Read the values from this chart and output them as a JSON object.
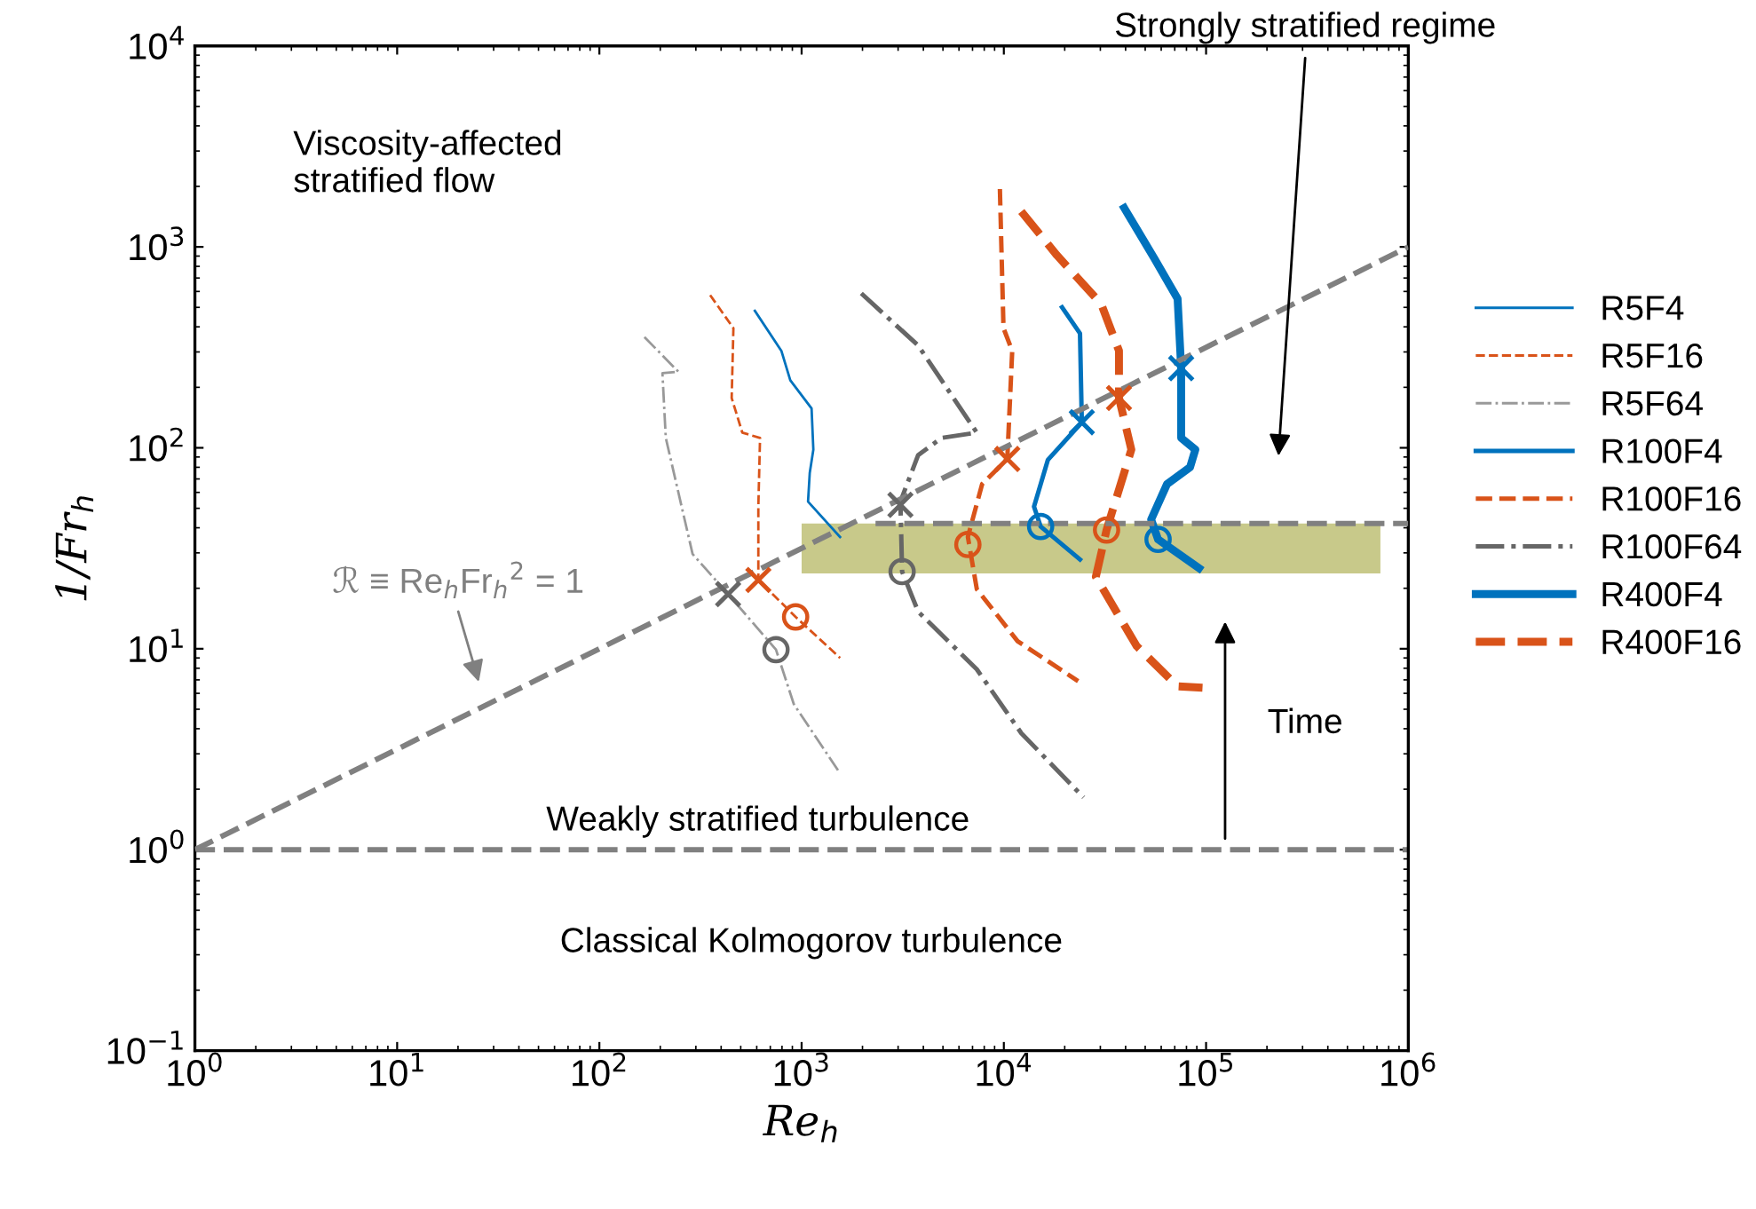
{
  "chart_data": {
    "type": "line",
    "xlabel": "Re$_{h}$",
    "ylabel": "1/Fr$_{h}$",
    "log": "xy",
    "xlim": [
      1,
      1000000
    ],
    "ylim": [
      0.1,
      10000
    ],
    "xticks": [
      {
        "value": 1,
        "label": "10$^{0}$"
      },
      {
        "value": 10,
        "label": "10$^{1}$"
      },
      {
        "value": 100,
        "label": "10$^{2}$"
      },
      {
        "value": 1000,
        "label": "10$^{3}$"
      },
      {
        "value": 10000,
        "label": "10$^{4}$"
      },
      {
        "value": 100000,
        "label": "10$^{5}$"
      },
      {
        "value": 1000000,
        "label": "10$^{6}$"
      }
    ],
    "yticks": [
      {
        "value": 0.1,
        "label": "10$^{−1}$"
      },
      {
        "value": 1,
        "label": "10$^{0}$"
      },
      {
        "value": 10,
        "label": "10$^{1}$"
      },
      {
        "value": 100,
        "label": "10$^{2}$"
      },
      {
        "value": 1000,
        "label": "10$^{3}$"
      },
      {
        "value": 10000,
        "label": "10$^{4}$"
      }
    ],
    "grid": false,
    "legend": "right",
    "marker": "none",
    "series": [
      {
        "name": "R5F4",
        "color": "#0072bd",
        "line_style": "solid",
        "x": [
          587,
          794,
          879,
          1120,
          1143,
          1097,
          1076,
          1549
        ],
        "values": [
          481,
          304,
          217,
          157,
          98,
          75,
          54,
          36
        ]
      },
      {
        "name": "R5F16",
        "color": "#d95319",
        "line_style": "dashed",
        "x": [
          353,
          460,
          451,
          509,
          623,
          611,
          611,
          934,
          1549
        ],
        "values": [
          575,
          394,
          177,
          119,
          112,
          51,
          22,
          14.4,
          9.0
        ]
      },
      {
        "name": "R5F64",
        "color": "#999999",
        "line_style": "dashdot",
        "x": [
          167,
          246,
          205,
          213,
          289,
          433,
          747,
          915,
          1549
        ],
        "values": [
          356,
          239,
          235,
          112,
          29.6,
          18.7,
          9.9,
          5.3,
          2.4
        ]
      },
      {
        "name": "R100F4",
        "color": "#0072bd",
        "line_style": "solid",
        "x": [
          19400,
          23800,
          24300,
          16500,
          14100,
          15200,
          23800
        ],
        "values": [
          500,
          371,
          134,
          87,
          51,
          40.6,
          27.8
        ]
      },
      {
        "name": "R100F16",
        "color": "#d95319",
        "line_style": "dashed",
        "x": [
          9560,
          9960,
          11000,
          10400,
          7810,
          6640,
          7350,
          11700,
          23300
        ],
        "values": [
          1940,
          394,
          304,
          88,
          66,
          36,
          19.8,
          10.9,
          6.9
        ]
      },
      {
        "name": "R100F64",
        "color": "#666666",
        "line_style": "dashdot",
        "x": [
          1973,
          3770,
          7350,
          4910,
          3770,
          3080,
          3140,
          3770,
          7350,
          12200,
          24800
        ],
        "values": [
          587,
          323,
          119,
          112,
          92,
          54,
          24.2,
          15.3,
          7.9,
          3.8,
          1.82
        ]
      },
      {
        "name": "R400F4",
        "color": "#0072bd",
        "line_style": "solid",
        "x": [
          39400,
          55600,
          72300,
          75300,
          75300,
          88500,
          83300,
          64100,
          53500,
          57900,
          92300
        ],
        "values": [
          1560,
          873,
          552,
          249,
          112,
          98,
          80,
          66,
          44,
          35,
          25.2
        ]
      },
      {
        "name": "R400F16",
        "color": "#d95319",
        "line_style": "dashed",
        "x": [
          12200,
          18300,
          30300,
          37100,
          37100,
          42700,
          32200,
          28500,
          45400,
          72300,
          96000
        ],
        "values": [
          1500,
          908,
          520,
          304,
          177,
          98,
          39,
          22.8,
          10.3,
          6.5,
          6.4
        ]
      },
      {
        "type": "line",
        "color": "#808080",
        "line_style": "dashed",
        "x": [
          1,
          1000000
        ],
        "values": [
          1,
          1000
        ]
      },
      {
        "type": "line",
        "color": "#808080",
        "line_style": "dashed",
        "x": [
          2320,
          1000000
        ],
        "values": [
          42,
          42
        ]
      },
      {
        "type": "scatter",
        "marker": "cross",
        "x": [
          433,
          611,
          3080,
          10400,
          24300,
          37100,
          75300
        ],
        "values": [
          18.7,
          22,
          52,
          88,
          134,
          177,
          249
        ],
        "colors": [
          "#666666",
          "#d95319",
          "#666666",
          "#d95319",
          "#0072bd",
          "#d95319",
          "#0072bd"
        ]
      },
      {
        "type": "scatter",
        "marker": "circle",
        "x": [
          747,
          934,
          3140,
          6640,
          15200,
          32200,
          57900
        ],
        "values": [
          9.9,
          14.4,
          24.2,
          33,
          40.6,
          39,
          35
        ],
        "colors": [
          "#666666",
          "#d95319",
          "#666666",
          "#d95319",
          "#0072bd",
          "#d95319",
          "#0072bd"
        ]
      }
    ],
    "ref_lines": [
      {
        "axis": "y",
        "value": 1,
        "color": "#808080",
        "line_style": "dashed"
      }
    ],
    "bands": [
      {
        "axis": "y",
        "from": 23.7,
        "to": 42,
        "color": "#c8c98a"
      }
    ],
    "annotations": [
      "Viscosity-affected\nstratified flow",
      "Strongly stratified regime",
      "Weakly stratified turbulence",
      "Classical Kolmogorov turbulence",
      "Time",
      "ℛ ≡ Re$_{h}$Fr$_{h}$$^{2}$ = 1"
    ]
  }
}
